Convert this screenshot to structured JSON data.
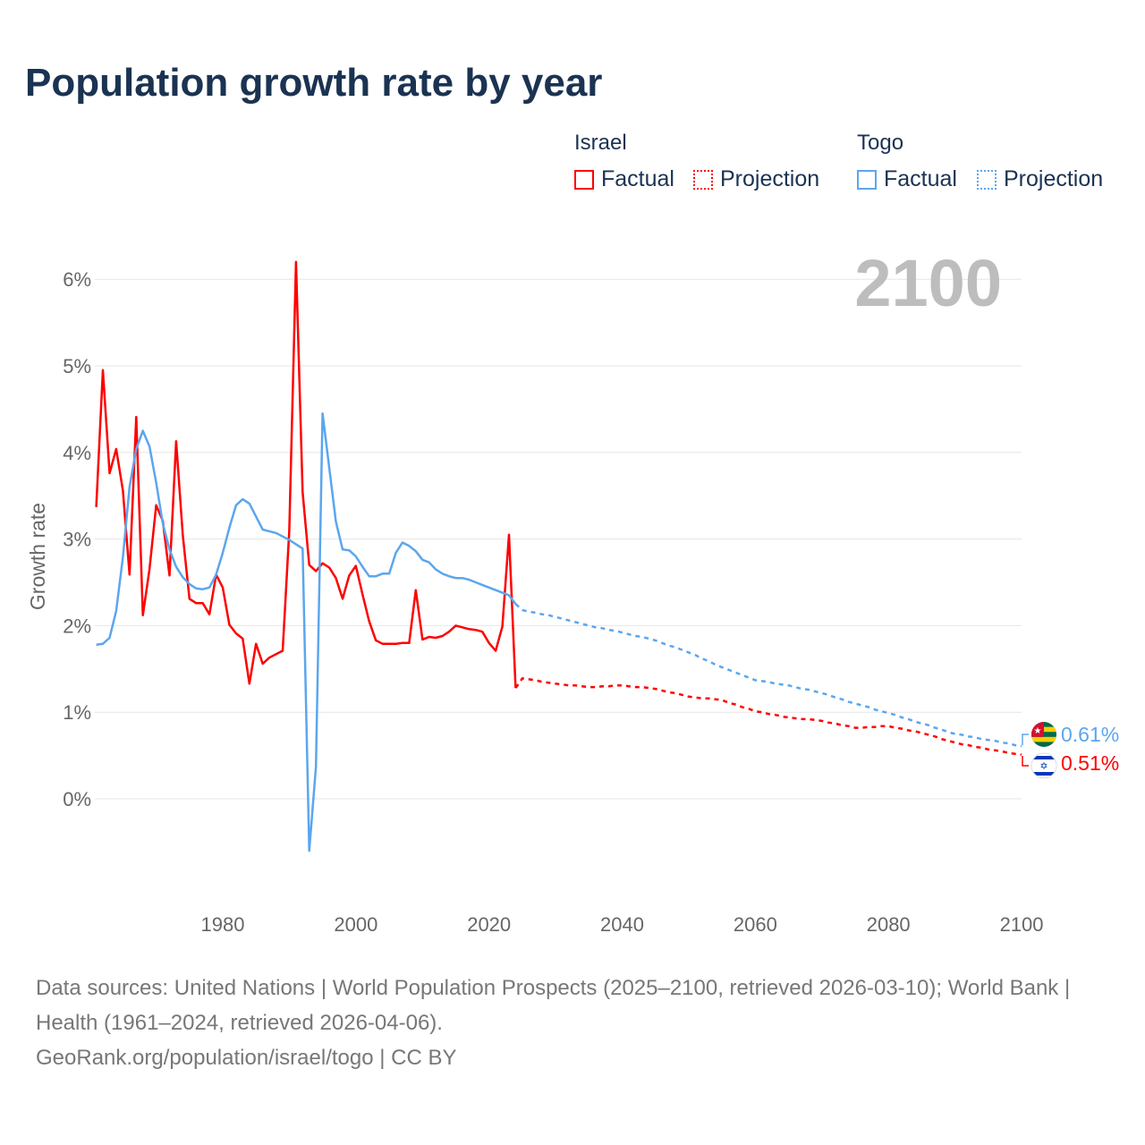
{
  "title": "Population growth rate by year",
  "legend": {
    "groups": [
      {
        "name": "Israel",
        "color": "#ff0000",
        "factual": "Factual",
        "projection": "Projection"
      },
      {
        "name": "Togo",
        "color": "#5ba6ee",
        "factual": "Factual",
        "projection": "Projection"
      }
    ]
  },
  "current_year": "2100",
  "end_labels": {
    "togo": "0.61%",
    "israel": "0.51%"
  },
  "footer": {
    "sources": "Data sources: United Nations | World Population Prospects (2025–2100, retrieved 2026-03-10); World Bank | Health (1961–2024, retrieved 2026-04-06).",
    "link": "GeoRank.org/population/israel/togo | CC BY"
  },
  "chart_data": {
    "type": "line",
    "title": "Population growth rate by year",
    "xlabel": "",
    "ylabel": "Growth rate",
    "xlim": [
      1961,
      2100
    ],
    "ylim": [
      -0.8,
      6.3
    ],
    "x_ticks": [
      "1980",
      "2000",
      "2020",
      "2040",
      "2060",
      "2080",
      "2100"
    ],
    "y_ticks": [
      "0%",
      "1%",
      "2%",
      "3%",
      "4%",
      "5%",
      "6%"
    ],
    "grid": true,
    "legend_position": "top-right",
    "factual_start": 1961,
    "projection_start": 2025,
    "series": [
      {
        "name": "Israel",
        "color": "#ff0000",
        "factual": [
          3.37,
          4.95,
          3.76,
          4.04,
          3.56,
          2.59,
          4.41,
          2.12,
          2.65,
          3.39,
          3.21,
          2.58,
          4.13,
          3.05,
          2.31,
          2.26,
          2.26,
          2.13,
          2.59,
          2.44,
          2.01,
          1.91,
          1.85,
          1.33,
          1.79,
          1.56,
          1.63,
          1.67,
          1.71,
          3.1,
          6.2,
          3.54,
          2.7,
          2.63,
          2.72,
          2.67,
          2.55,
          2.31,
          2.58,
          2.69,
          2.36,
          2.05,
          1.83,
          1.79,
          1.79,
          1.79,
          1.8,
          1.8,
          2.41,
          1.84,
          1.87,
          1.86,
          1.88,
          1.93,
          2.0,
          1.98,
          1.96,
          1.95,
          1.93,
          1.8,
          1.71,
          1.99,
          3.05,
          1.28
        ],
        "projection": [
          1.39,
          1.38,
          1.37,
          1.35,
          1.34,
          1.33,
          1.32,
          1.31,
          1.31,
          1.3,
          1.29,
          1.29,
          1.3,
          1.3,
          1.31,
          1.31,
          1.3,
          1.29,
          1.29,
          1.28,
          1.27,
          1.25,
          1.23,
          1.22,
          1.2,
          1.18,
          1.17,
          1.16,
          1.16,
          1.15,
          1.14,
          1.11,
          1.09,
          1.06,
          1.04,
          1.01,
          1.0,
          0.98,
          0.97,
          0.95,
          0.94,
          0.93,
          0.92,
          0.92,
          0.91,
          0.9,
          0.88,
          0.87,
          0.85,
          0.84,
          0.82,
          0.82,
          0.83,
          0.83,
          0.84,
          0.84,
          0.82,
          0.81,
          0.79,
          0.78,
          0.76,
          0.74,
          0.72,
          0.69,
          0.67,
          0.65,
          0.63,
          0.62,
          0.6,
          0.59,
          0.57,
          0.56,
          0.55,
          0.53,
          0.52,
          0.51
        ]
      },
      {
        "name": "Togo",
        "color": "#5ba6ee",
        "factual": [
          1.78,
          1.79,
          1.86,
          2.17,
          2.79,
          3.6,
          4.04,
          4.25,
          4.07,
          3.65,
          3.18,
          2.88,
          2.68,
          2.56,
          2.48,
          2.43,
          2.42,
          2.44,
          2.59,
          2.84,
          3.13,
          3.39,
          3.46,
          3.41,
          3.26,
          3.11,
          3.09,
          3.07,
          3.03,
          2.99,
          2.94,
          2.89,
          -0.6,
          0.37,
          4.45,
          3.82,
          3.2,
          2.88,
          2.87,
          2.8,
          2.68,
          2.57,
          2.57,
          2.6,
          2.6,
          2.84,
          2.96,
          2.92,
          2.86,
          2.76,
          2.73,
          2.65,
          2.6,
          2.57,
          2.55,
          2.55,
          2.53,
          2.5,
          2.47,
          2.44,
          2.41,
          2.38,
          2.35,
          2.25
        ],
        "projection": [
          2.18,
          2.16,
          2.15,
          2.13,
          2.12,
          2.1,
          2.08,
          2.06,
          2.04,
          2.02,
          2.0,
          1.98,
          1.97,
          1.95,
          1.94,
          1.92,
          1.9,
          1.88,
          1.87,
          1.85,
          1.83,
          1.8,
          1.77,
          1.75,
          1.72,
          1.69,
          1.66,
          1.62,
          1.59,
          1.55,
          1.52,
          1.49,
          1.46,
          1.43,
          1.4,
          1.37,
          1.36,
          1.35,
          1.33,
          1.32,
          1.31,
          1.29,
          1.27,
          1.26,
          1.24,
          1.22,
          1.2,
          1.17,
          1.15,
          1.12,
          1.1,
          1.08,
          1.06,
          1.03,
          1.01,
          0.99,
          0.97,
          0.94,
          0.92,
          0.89,
          0.87,
          0.85,
          0.82,
          0.8,
          0.77,
          0.75,
          0.74,
          0.72,
          0.71,
          0.69,
          0.68,
          0.67,
          0.65,
          0.64,
          0.62,
          0.61
        ]
      }
    ]
  }
}
